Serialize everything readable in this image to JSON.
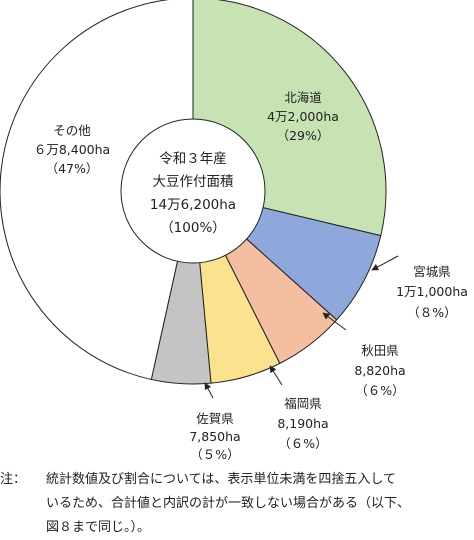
{
  "chart_data": {
    "type": "pie",
    "center": [
      "令和３年産",
      "大豆作付面積",
      "14万6,200ha",
      "（100%）"
    ],
    "slices": [
      {
        "name": "北海道",
        "area": "4万2,000ha",
        "pct_label": "（29%）",
        "value": 29,
        "color": "#c7e3b4"
      },
      {
        "name": "宮城県",
        "area": "1万1,000ha",
        "pct_label": "（８%）",
        "value": 8,
        "color": "#8fa8dc"
      },
      {
        "name": "秋田県",
        "area": "8,820ha",
        "pct_label": "（６%）",
        "value": 6,
        "color": "#f4bea1"
      },
      {
        "name": "福岡県",
        "area": "8,190ha",
        "pct_label": "（６%）",
        "value": 6,
        "color": "#fbe28e"
      },
      {
        "name": "佐賀県",
        "area": "7,850ha",
        "pct_label": "（５%）",
        "value": 5,
        "color": "#c4c4c4"
      },
      {
        "name": "その他",
        "area": "６万8,400ha",
        "pct_label": "（47%）",
        "value": 47,
        "color": "#ffffff"
      }
    ]
  },
  "note": {
    "head": "注：",
    "lines": [
      "統計数値及び割合については、表示単位未満を四捨五入して",
      "いるため、合計値と内訳の計が一致しない場合がある（以下、",
      "図８まで同じ。）。"
    ]
  }
}
